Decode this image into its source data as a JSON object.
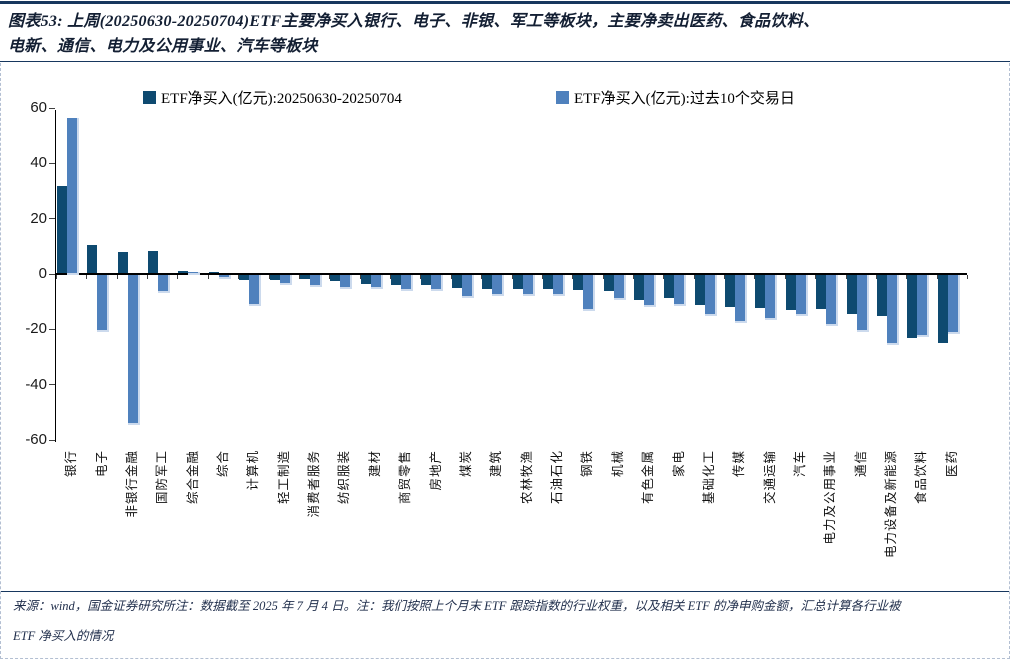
{
  "figure": {
    "title_line1": "图表53: 上周(20250630-20250704)ETF主要净买入银行、电子、非银、军工等板块，主要净卖出医药、食品饮料、",
    "title_line2": "电新、通信、电力及公用事业、汽车等板块",
    "footnote_line1": "来源：wind，国金证券研究所注：数据截至 2025 年 7 月 4 日。注：我们按照上个月末 ETF 跟踪指数的行业权重，以及相关 ETF 的净申购金额，汇总计算各行业被",
    "footnote_line2": "ETF 净买入的情况"
  },
  "colors": {
    "rule_navy": "#17375e",
    "series_dark": "#0e4a70",
    "series_light": "#4f81bd",
    "light_halo": "#ccdaed",
    "dashed_border": "#b3bfd2"
  },
  "chart_data": {
    "type": "bar",
    "title": "",
    "xlabel": "",
    "ylabel": "",
    "ylim": [
      -60,
      60
    ],
    "yticks": [
      60,
      40,
      20,
      0,
      -20,
      -40,
      -60
    ],
    "grid": false,
    "legend_position": "top",
    "categories": [
      "银行",
      "电子",
      "非银行金融",
      "国防军工",
      "综合金融",
      "综合",
      "计算机",
      "轻工制造",
      "消费者服务",
      "纺织服装",
      "建材",
      "商贸零售",
      "房地产",
      "煤炭",
      "建筑",
      "农林牧渔",
      "石油石化",
      "钢铁",
      "机械",
      "有色金属",
      "家电",
      "基础化工",
      "传媒",
      "交通运输",
      "汽车",
      "电力及公用事业",
      "通信",
      "电力设备及新能源",
      "食品饮料",
      "医药"
    ],
    "series": [
      {
        "name": "ETF净买入(亿元):20250630-20250704",
        "color": "#0e4a70",
        "values": [
          31.5,
          10.0,
          7.6,
          7.8,
          0.8,
          0.4,
          -2.0,
          -2.1,
          -1.8,
          -2.5,
          -3.3,
          -3.9,
          -3.7,
          -4.9,
          -5.1,
          -5.1,
          -5.1,
          -5.7,
          -6.0,
          -9.2,
          -8.6,
          -11.2,
          -11.9,
          -12.2,
          -12.8,
          -12.5,
          -14.3,
          -15.1,
          -22.9,
          -24.6
        ]
      },
      {
        "name": "ETF净买入(亿元):过去10个交易日",
        "color": "#4f81bd",
        "values": [
          55.9,
          -20.0,
          -53.8,
          -5.9,
          0.5,
          -1.0,
          -10.5,
          -3.1,
          -3.7,
          -4.5,
          -4.5,
          -5.1,
          -5.4,
          -7.7,
          -6.9,
          -7.2,
          -6.9,
          -12.5,
          -8.6,
          -11.2,
          -10.7,
          -14.2,
          -16.9,
          -15.7,
          -14.3,
          -17.8,
          -20.2,
          -24.6,
          -21.9,
          -20.8
        ]
      }
    ]
  }
}
